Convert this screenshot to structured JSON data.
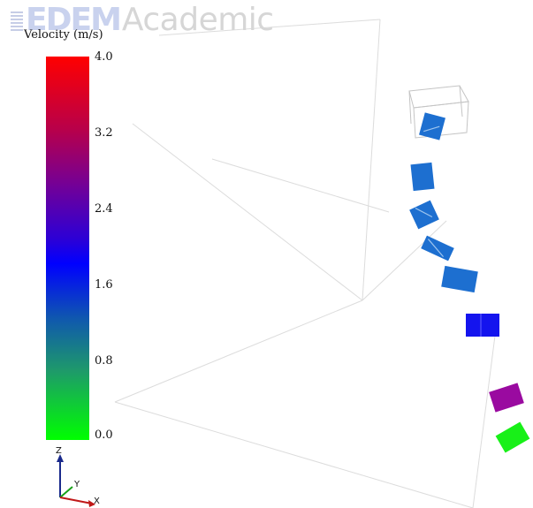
{
  "logo": {
    "brand": "EDEM",
    "suffix": "Academic"
  },
  "legend": {
    "title": "Velocity (m/s)",
    "min": 0.0,
    "max": 4.0,
    "ticks": [
      "4.0",
      "3.2",
      "2.4",
      "1.6",
      "0.8",
      "0.0"
    ],
    "colors": {
      "high": "#ff0000",
      "upper_mid": "#760094",
      "mid": "#0000ff",
      "lower_mid": "#1e9a6a",
      "low": "#00ff00"
    }
  },
  "axes": {
    "x": "X",
    "y": "Y",
    "z": "Z"
  },
  "particles": [
    {
      "velocity_ms": 1.9,
      "color": "#1d6fd0"
    },
    {
      "velocity_ms": 1.9,
      "color": "#1d6fd0"
    },
    {
      "velocity_ms": 1.9,
      "color": "#1d6fd0"
    },
    {
      "velocity_ms": 1.9,
      "color": "#1d6fd0"
    },
    {
      "velocity_ms": 1.9,
      "color": "#1d6fd0"
    },
    {
      "velocity_ms": 2.1,
      "color": "#1414ee"
    },
    {
      "velocity_ms": 3.0,
      "color": "#9a0aa0"
    },
    {
      "velocity_ms": 0.1,
      "color": "#18f018"
    }
  ]
}
